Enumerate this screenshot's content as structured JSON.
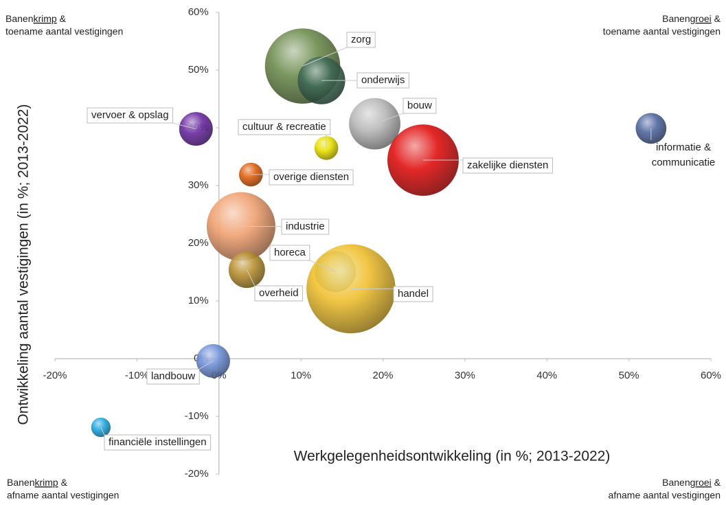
{
  "chart_data": {
    "type": "bubble",
    "x_label": "Werkgelegenheidsontwikkeling (in %; 2013-2022)",
    "y_label": "Ontwikkeling aantal vestigingen (in %; 2013-2022)",
    "xlim": [
      -20,
      60
    ],
    "ylim": [
      -20,
      60
    ],
    "xticks": [
      {
        "value": -20,
        "label": "-20%"
      },
      {
        "value": -10,
        "label": "-10%"
      },
      {
        "value": 0,
        "label": "0%"
      },
      {
        "value": 10,
        "label": "10%"
      },
      {
        "value": 20,
        "label": "20%"
      },
      {
        "value": 30,
        "label": "30%"
      },
      {
        "value": 40,
        "label": "40%"
      },
      {
        "value": 50,
        "label": "50%"
      },
      {
        "value": 60,
        "label": "60%"
      }
    ],
    "yticks": [
      {
        "value": -20,
        "label": "-20%"
      },
      {
        "value": -10,
        "label": "-10%"
      },
      {
        "value": 0,
        "label": "0%"
      },
      {
        "value": 10,
        "label": "10%"
      },
      {
        "value": 20,
        "label": "20%"
      },
      {
        "value": 30,
        "label": "30%"
      },
      {
        "value": 40,
        "label": "40%"
      },
      {
        "value": 50,
        "label": "50%"
      },
      {
        "value": 60,
        "label": "60%"
      }
    ],
    "categories": [
      "zorg",
      "onderwijs",
      "bouw",
      "zakelijke diensten",
      "informatie & communicatie",
      "vervoer & opslag",
      "cultuur & recreatie",
      "overige diensten",
      "industrie",
      "horeca",
      "handel",
      "overheid",
      "landbouw",
      "financiële instellingen"
    ],
    "x": [
      10.2,
      12.5,
      19.0,
      24.9,
      52.7,
      -2.8,
      13.1,
      3.9,
      2.7,
      14.2,
      16.1,
      3.4,
      -0.7,
      -14.4
    ],
    "values": [
      50.7,
      48.2,
      40.7,
      34.4,
      39.9,
      39.8,
      36.5,
      31.9,
      22.9,
      15.1,
      12.1,
      15.4,
      -0.4,
      -11.9
    ],
    "sizes": [
      30,
      12,
      14,
      27,
      5,
      6,
      3,
      3,
      25,
      9,
      42,
      7,
      6,
      2
    ],
    "colors": [
      "#6d8c4e",
      "#3f6a55",
      "#b8b8b8",
      "#e01010",
      "#5068a0",
      "#6a2aa0",
      "#e8e000",
      "#e06010",
      "#f0a070",
      "#78a838",
      "#f0c030",
      "#b89030",
      "#7090d8",
      "#20a8e0"
    ],
    "annotations": [
      {
        "corner": "top-left",
        "prefix": "Banen",
        "emph": "krimp",
        "suffix": " &",
        "line2": "toename aantal vestigingen"
      },
      {
        "corner": "top-right",
        "prefix": "Banen",
        "emph": "groei",
        "suffix": " &",
        "line2": "toename aantal vestigingen"
      },
      {
        "corner": "bottom-left",
        "prefix": "Banen",
        "emph": "krimp",
        "suffix": " &",
        "line2": "afname aantal vestigingen"
      },
      {
        "corner": "bottom-right",
        "prefix": "Banen",
        "emph": "groei",
        "suffix": " &",
        "line2": "afname aantal vestigingen"
      }
    ]
  }
}
